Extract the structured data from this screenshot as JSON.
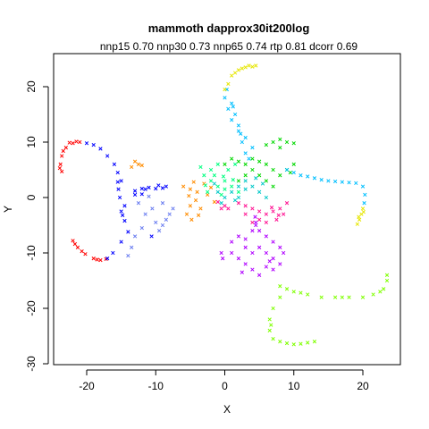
{
  "chart_data": {
    "type": "scatter",
    "title": "mammoth dapprox30it200log",
    "subtitle": "nnp15 0.70 nnp30 0.73 nnp65 0.74 rtp 0.81 dcorr 0.69",
    "xlabel": "X",
    "ylabel": "Y",
    "xlim": [
      -25,
      25
    ],
    "ylim": [
      -30,
      25
    ],
    "xticks": [
      -20,
      -10,
      0,
      10,
      20
    ],
    "yticks": [
      -30,
      -20,
      -10,
      0,
      10,
      20
    ],
    "xtick_labels": [
      "-20",
      "-10",
      "0",
      "10",
      "20"
    ],
    "ytick_labels": [
      "-30",
      "-20",
      "-10",
      "0",
      "10",
      "20"
    ],
    "grid": false,
    "legend": "none",
    "marker": "cross",
    "series": [
      {
        "color": "#ff0000",
        "points": [
          [
            -21,
            10
          ],
          [
            -22,
            9.8
          ],
          [
            -23,
            9
          ],
          [
            -23.6,
            7.5
          ],
          [
            -23.8,
            6
          ],
          [
            -23.6,
            4.7
          ],
          [
            -22.5,
            9.9
          ],
          [
            -21.5,
            10.1
          ],
          [
            -23.4,
            8.4
          ],
          [
            -23.9,
            5.3
          ],
          [
            -22,
            -7.8
          ],
          [
            -21.3,
            -9
          ],
          [
            -20.2,
            -10.2
          ],
          [
            -19,
            -11
          ],
          [
            -18,
            -11.3
          ],
          [
            -17.2,
            -11.1
          ],
          [
            -21.7,
            -8.4
          ],
          [
            -20.7,
            -9.7
          ],
          [
            -18.5,
            -11.2
          ]
        ]
      },
      {
        "color": "#0000ff",
        "points": [
          [
            -20,
            9.8
          ],
          [
            -19,
            9.5
          ],
          [
            -18,
            8.8
          ],
          [
            -17,
            7.5
          ],
          [
            -16,
            6
          ],
          [
            -15.5,
            4.5
          ],
          [
            -15,
            3
          ],
          [
            -15.4,
            1.5
          ],
          [
            -15.2,
            0
          ],
          [
            -14.5,
            -1.5
          ],
          [
            -15,
            -2.5
          ],
          [
            -14.5,
            -4.2
          ],
          [
            -14,
            -6.2
          ],
          [
            -15,
            -8
          ],
          [
            -16.2,
            -10
          ],
          [
            -17,
            -11
          ],
          [
            -13,
            1.2
          ],
          [
            -12,
            1.6
          ],
          [
            -11,
            1.8
          ],
          [
            -10,
            1.6
          ],
          [
            -9,
            1.7
          ],
          [
            -8.5,
            2
          ],
          [
            -13,
            0.5
          ],
          [
            -12,
            0.6
          ],
          [
            -10.6,
            -7
          ],
          [
            -15.5,
            2.8
          ],
          [
            -14.8,
            -3.2
          ],
          [
            -11.5,
            1.5
          ],
          [
            -9.6,
            2.2
          ]
        ]
      },
      {
        "color": "#6a7df0",
        "points": [
          [
            -12.5,
            -1
          ],
          [
            -11.5,
            -3
          ],
          [
            -10,
            -4.5
          ],
          [
            -9,
            -5
          ],
          [
            -8,
            -3
          ],
          [
            -9,
            -1
          ],
          [
            -10.5,
            -2
          ],
          [
            -11,
            0.2
          ],
          [
            -8.5,
            -4
          ],
          [
            -9.5,
            -6
          ],
          [
            -12,
            -5.5
          ],
          [
            -13,
            -7
          ],
          [
            -13.5,
            -9
          ],
          [
            -14,
            -10.5
          ],
          [
            -7.5,
            -2
          ]
        ]
      },
      {
        "color": "#ff8c00",
        "points": [
          [
            -13.5,
            5.5
          ],
          [
            -13,
            6.5
          ],
          [
            -12.5,
            6
          ],
          [
            -12,
            5.8
          ],
          [
            -6,
            2
          ],
          [
            -5,
            1.5
          ],
          [
            -4,
            1
          ],
          [
            -4.2,
            -0.5
          ],
          [
            -5,
            -1.5
          ],
          [
            -5.5,
            -3
          ],
          [
            -4.8,
            -4
          ],
          [
            -3.5,
            -2
          ],
          [
            -2.5,
            0.5
          ],
          [
            -3,
            2.5
          ],
          [
            -4.5,
            2.8
          ],
          [
            -2,
            1.8
          ],
          [
            -1.5,
            -0.8
          ],
          [
            -3.8,
            -3.2
          ],
          [
            -5.2,
            0.3
          ]
        ]
      },
      {
        "color": "#00ff80",
        "points": [
          [
            -3,
            4
          ],
          [
            -2,
            5
          ],
          [
            -1,
            6
          ],
          [
            -2,
            3
          ],
          [
            -1,
            2
          ],
          [
            0,
            3
          ],
          [
            1,
            2
          ],
          [
            -2.5,
            1
          ],
          [
            -0.5,
            0.5
          ],
          [
            0.5,
            5
          ],
          [
            1.5,
            6
          ],
          [
            -3.5,
            5.5
          ],
          [
            -1.5,
            4
          ],
          [
            0,
            1.5
          ],
          [
            2,
            1
          ],
          [
            -2.8,
            2.2
          ],
          [
            -0.2,
            3.8
          ],
          [
            1.2,
            3.2
          ]
        ]
      },
      {
        "color": "#00d800",
        "points": [
          [
            0,
            6
          ],
          [
            1,
            7
          ],
          [
            2,
            6.5
          ],
          [
            3,
            6
          ],
          [
            4,
            7
          ],
          [
            5,
            6.5
          ],
          [
            6,
            6
          ],
          [
            7,
            5
          ],
          [
            8,
            4
          ],
          [
            9,
            5
          ],
          [
            10,
            6
          ],
          [
            9.5,
            4.5
          ],
          [
            4,
            5
          ],
          [
            5,
            4
          ],
          [
            6,
            3
          ],
          [
            7,
            2
          ],
          [
            6,
            9.5
          ],
          [
            7,
            10
          ],
          [
            8,
            10.5
          ],
          [
            9,
            10
          ],
          [
            10,
            9.8
          ],
          [
            8,
            9
          ],
          [
            3,
            4
          ],
          [
            2,
            3
          ]
        ]
      },
      {
        "color": "#00c8c8",
        "points": [
          [
            -1.5,
            2.5
          ],
          [
            -1,
            1
          ],
          [
            0,
            0
          ],
          [
            1,
            1
          ],
          [
            2,
            0
          ],
          [
            3,
            1.5
          ],
          [
            4,
            2
          ],
          [
            5,
            1
          ],
          [
            6,
            0
          ],
          [
            3,
            3
          ],
          [
            4.5,
            3.5
          ],
          [
            2,
            2
          ],
          [
            -0.5,
            -1
          ],
          [
            1.5,
            -0.5
          ],
          [
            5.5,
            2.5
          ]
        ]
      },
      {
        "color": "#00bfff",
        "points": [
          [
            0,
            18
          ],
          [
            0.5,
            16
          ],
          [
            1,
            14
          ],
          [
            2,
            12
          ],
          [
            2.5,
            10
          ],
          [
            3,
            8
          ],
          [
            3.5,
            7
          ],
          [
            1,
            17
          ],
          [
            1.5,
            15
          ],
          [
            2,
            13
          ],
          [
            3,
            10.8
          ],
          [
            4,
            9
          ],
          [
            9,
            5
          ],
          [
            11,
            4
          ],
          [
            13,
            3.5
          ],
          [
            15,
            3
          ],
          [
            17,
            2.8
          ],
          [
            19,
            2.6
          ],
          [
            20,
            2
          ],
          [
            20.3,
            0.5
          ],
          [
            20.2,
            -1
          ],
          [
            14,
            3.2
          ],
          [
            16,
            2.9
          ],
          [
            18,
            2.7
          ],
          [
            0.3,
            19.5
          ],
          [
            1.2,
            16.4
          ],
          [
            2.3,
            11.5
          ],
          [
            10,
            4.5
          ],
          [
            12,
            3.8
          ]
        ]
      },
      {
        "color": "#e6e600",
        "points": [
          [
            0,
            19.5
          ],
          [
            0.5,
            20.5
          ],
          [
            1,
            22
          ],
          [
            2,
            23
          ],
          [
            3,
            23.5
          ],
          [
            3.5,
            23.8
          ],
          [
            4,
            23.6
          ],
          [
            4.5,
            23.8
          ],
          [
            2.5,
            23.3
          ],
          [
            1.5,
            22.5
          ],
          [
            20,
            -2
          ],
          [
            19.8,
            -3
          ],
          [
            19.5,
            -4
          ],
          [
            19.2,
            -4.8
          ],
          [
            20.1,
            -2.6
          ],
          [
            19.4,
            -3.5
          ]
        ]
      },
      {
        "color": "#ff1493",
        "points": [
          [
            -0.5,
            -2
          ],
          [
            0,
            -1.5
          ],
          [
            0.5,
            -2
          ],
          [
            2,
            -1
          ],
          [
            3,
            -1.5
          ],
          [
            4,
            -2
          ],
          [
            5,
            -2.5
          ],
          [
            6,
            -3
          ],
          [
            7,
            -2.5
          ],
          [
            8,
            -2
          ],
          [
            9,
            -1
          ],
          [
            8.5,
            -3
          ],
          [
            7.5,
            -4
          ],
          [
            6,
            -4.5
          ],
          [
            5,
            -4
          ],
          [
            4,
            -4.5
          ],
          [
            3,
            -3
          ],
          [
            -1,
            -0.8
          ],
          [
            6.8,
            -1.8
          ],
          [
            7.8,
            -3.2
          ]
        ]
      },
      {
        "color": "#b000ff",
        "points": [
          [
            -0.5,
            -10
          ],
          [
            -0.3,
            -11
          ],
          [
            1,
            -8
          ],
          [
            2,
            -7
          ],
          [
            3,
            -7.5
          ],
          [
            4,
            -6
          ],
          [
            4.5,
            -5
          ],
          [
            5,
            -6
          ],
          [
            6,
            -7
          ],
          [
            7,
            -8
          ],
          [
            8,
            -9
          ],
          [
            8.5,
            -10
          ],
          [
            8,
            -12
          ],
          [
            7,
            -13
          ],
          [
            6,
            -12.5
          ],
          [
            5,
            -14
          ],
          [
            4,
            -13
          ],
          [
            3,
            -12
          ],
          [
            2,
            -11
          ],
          [
            1,
            -10
          ],
          [
            4,
            -10
          ],
          [
            5,
            -9
          ],
          [
            6,
            -10
          ],
          [
            7,
            -11
          ],
          [
            3,
            -9
          ],
          [
            4.4,
            -3.5
          ],
          [
            4.5,
            -4.5
          ],
          [
            2.5,
            -13.5
          ],
          [
            6.5,
            -11.5
          ]
        ]
      },
      {
        "color": "#7fff00",
        "points": [
          [
            8,
            -16
          ],
          [
            10,
            -17
          ],
          [
            12,
            -17.5
          ],
          [
            14,
            -18
          ],
          [
            16,
            -18
          ],
          [
            18,
            -18
          ],
          [
            20,
            -18
          ],
          [
            21.5,
            -17.5
          ],
          [
            23,
            -16.5
          ],
          [
            23.5,
            -15
          ],
          [
            23.5,
            -14
          ],
          [
            9,
            -16.5
          ],
          [
            8,
            -18
          ],
          [
            7,
            -20
          ],
          [
            6.5,
            -22
          ],
          [
            6.5,
            -24
          ],
          [
            7,
            -25.5
          ],
          [
            8,
            -26
          ],
          [
            9,
            -26.3
          ],
          [
            10,
            -26.5
          ],
          [
            11,
            -26.4
          ],
          [
            12,
            -26.2
          ],
          [
            13,
            -26
          ],
          [
            11,
            -17.2
          ],
          [
            17,
            -18
          ],
          [
            22.5,
            -17
          ],
          [
            6.7,
            -23
          ]
        ]
      }
    ]
  }
}
